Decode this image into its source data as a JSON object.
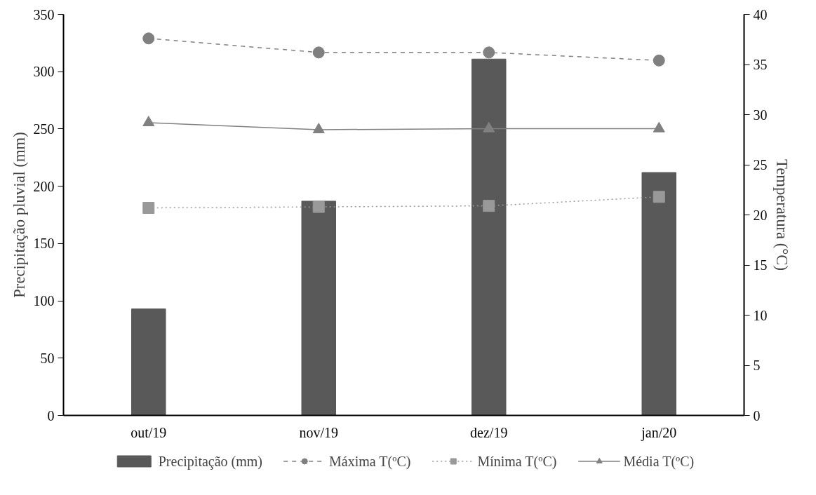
{
  "chart_data": {
    "type": "bar",
    "categories": [
      "out/19",
      "nov/19",
      "dez/19",
      "jan/20"
    ],
    "ylabel": "Precipitação pluvial (mm)",
    "y2label": "Temperatura (°C)",
    "ylim": [
      0,
      350
    ],
    "yticks": [
      0,
      50,
      100,
      150,
      200,
      250,
      300,
      350
    ],
    "y2lim": [
      0,
      40
    ],
    "y2ticks": [
      0,
      5,
      10,
      15,
      20,
      25,
      30,
      35,
      40
    ],
    "grid": false,
    "legend": "bottom",
    "series": [
      {
        "name": "Precipitação (mm)",
        "color": "#595959",
        "values": [
          93,
          187,
          311,
          212
        ]
      },
      {
        "name": "Máxima T(ºC)",
        "type": "line",
        "axis": "y2",
        "color": "#808080",
        "marker": "circle",
        "line_style": "dashed",
        "values": [
          37.6,
          36.2,
          36.2,
          35.4
        ]
      },
      {
        "name": "Mínima T(ºC)",
        "type": "line",
        "axis": "y2",
        "color": "#999999",
        "marker": "square",
        "line_style": "dotted",
        "values": [
          20.7,
          20.8,
          20.9,
          21.8
        ]
      },
      {
        "name": "Média T(ºC)",
        "type": "line",
        "axis": "y2",
        "color": "#808080",
        "marker": "triangle",
        "line_style": "solid",
        "values": [
          29.2,
          28.5,
          28.6,
          28.6
        ]
      }
    ]
  }
}
